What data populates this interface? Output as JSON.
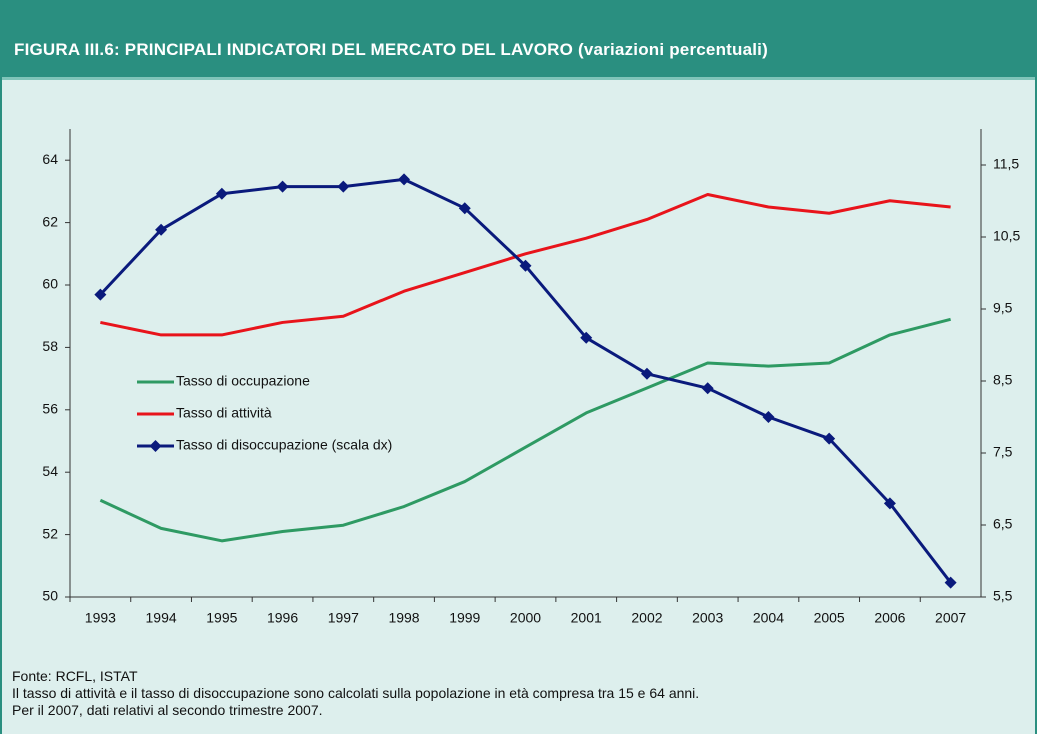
{
  "chart_data": {
    "type": "line",
    "title": "FIGURA III.6: PRINCIPALI INDICATORI DEL MERCATO DEL LAVORO (variazioni percentuali)",
    "categories": [
      "1993",
      "1994",
      "1995",
      "1996",
      "1997",
      "1998",
      "1999",
      "2000",
      "2001",
      "2002",
      "2003",
      "2004",
      "2005",
      "2006",
      "2007"
    ],
    "series": [
      {
        "name": "Tasso di occupazione",
        "color": "#2e9a63",
        "values": [
          53.1,
          52.2,
          51.8,
          52.1,
          52.3,
          52.9,
          53.7,
          54.8,
          55.9,
          56.7,
          57.5,
          57.4,
          57.5,
          58.4,
          58.9
        ]
      },
      {
        "name": "Tasso di attività",
        "color": "#e8141b",
        "values": [
          58.8,
          58.4,
          58.4,
          58.8,
          59.0,
          59.8,
          60.4,
          61.0,
          61.5,
          62.1,
          62.9,
          62.5,
          62.3,
          62.7,
          62.5
        ]
      },
      {
        "name": "Tasso di disoccupazione (scala dx)",
        "color": "#0a1a7c",
        "axis": "y2",
        "marker": "diamond",
        "values": [
          9.7,
          10.6,
          11.1,
          11.2,
          11.2,
          11.3,
          10.9,
          10.1,
          9.1,
          8.6,
          8.4,
          8.0,
          7.7,
          6.8,
          5.7
        ]
      }
    ],
    "ylim": [
      50,
      65
    ],
    "yticks": [
      50,
      52,
      54,
      56,
      58,
      60,
      62,
      64
    ],
    "y2lim": [
      5.5,
      12
    ],
    "y2ticks": [
      {
        "value": 5.5,
        "label": "5,5"
      },
      {
        "value": 6.5,
        "label": "6,5"
      },
      {
        "value": 7.5,
        "label": "7,5"
      },
      {
        "value": 8.5,
        "label": "8,5"
      },
      {
        "value": 9.5,
        "label": "9,5"
      },
      {
        "value": 10.5,
        "label": "10,5"
      },
      {
        "value": 11.5,
        "label": "11,5"
      }
    ],
    "notes": [
      "Fonte: RCFL, ISTAT",
      "Il tasso di attività e il tasso di disoccupazione sono calcolati sulla popolazione in età compresa tra 15 e 64 anni.",
      "Per il 2007, dati relativi al secondo trimestre 2007."
    ]
  }
}
